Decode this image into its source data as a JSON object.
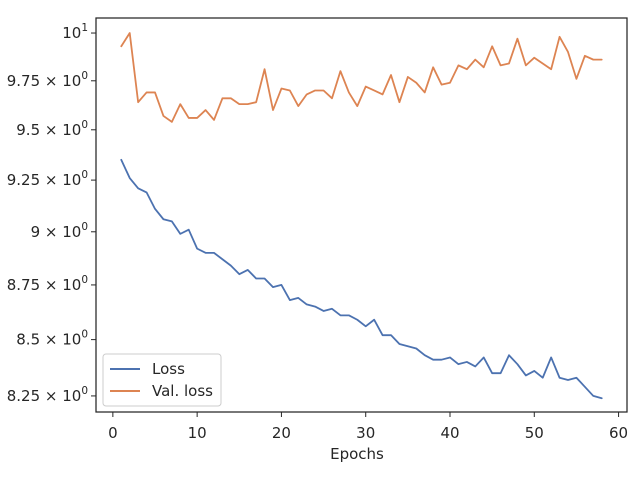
{
  "chart_data": {
    "type": "line",
    "title": "",
    "xlabel": "Epochs",
    "ylabel": "",
    "yscale": "log",
    "xlim": [
      -2,
      61
    ],
    "ylim": [
      8.18,
      10.08
    ],
    "grid": false,
    "legend_position": "bottom-left",
    "x_ticks": [
      0,
      10,
      20,
      30,
      40,
      50,
      60
    ],
    "x_tick_labels": [
      "0",
      "10",
      "20",
      "30",
      "40",
      "50",
      "60"
    ],
    "y_ticks": [
      8.25,
      8.5,
      8.75,
      9.0,
      9.25,
      9.5,
      9.75,
      10.0
    ],
    "y_tick_labels": [
      {
        "mant": "8.25 × 10",
        "exp": "0"
      },
      {
        "mant": "8.5 × 10",
        "exp": "0"
      },
      {
        "mant": "8.75 × 10",
        "exp": "0"
      },
      {
        "mant": "9 × 10",
        "exp": "0"
      },
      {
        "mant": "9.25 × 10",
        "exp": "0"
      },
      {
        "mant": "9.5 × 10",
        "exp": "0"
      },
      {
        "mant": "9.75 × 10",
        "exp": "0"
      },
      {
        "mant": "10",
        "exp": "1"
      }
    ],
    "x": [
      1,
      2,
      3,
      4,
      5,
      6,
      7,
      8,
      9,
      10,
      11,
      12,
      13,
      14,
      15,
      16,
      17,
      18,
      19,
      20,
      21,
      22,
      23,
      24,
      25,
      26,
      27,
      28,
      29,
      30,
      31,
      32,
      33,
      34,
      35,
      36,
      37,
      38,
      39,
      40,
      41,
      42,
      43,
      44,
      45,
      46,
      47,
      48,
      49,
      50,
      51,
      52,
      53,
      54,
      55,
      56,
      57,
      58
    ],
    "series": [
      {
        "name": "Loss",
        "color": "#4c72b0",
        "values": [
          9.35,
          9.26,
          9.21,
          9.19,
          9.11,
          9.06,
          9.05,
          8.99,
          9.01,
          8.92,
          8.9,
          8.9,
          8.87,
          8.84,
          8.8,
          8.82,
          8.78,
          8.78,
          8.74,
          8.75,
          8.68,
          8.69,
          8.66,
          8.65,
          8.63,
          8.64,
          8.61,
          8.61,
          8.59,
          8.56,
          8.59,
          8.52,
          8.52,
          8.48,
          8.47,
          8.46,
          8.43,
          8.41,
          8.41,
          8.42,
          8.39,
          8.4,
          8.38,
          8.42,
          8.35,
          8.35,
          8.43,
          8.39,
          8.34,
          8.36,
          8.33,
          8.42,
          8.33,
          8.32,
          8.33,
          8.29,
          8.25,
          8.24
        ]
      },
      {
        "name": "Val. loss",
        "color": "#dd8452",
        "values": [
          9.93,
          10.0,
          9.64,
          9.69,
          9.69,
          9.57,
          9.54,
          9.63,
          9.56,
          9.56,
          9.6,
          9.55,
          9.66,
          9.66,
          9.63,
          9.63,
          9.64,
          9.81,
          9.6,
          9.71,
          9.7,
          9.62,
          9.68,
          9.7,
          9.7,
          9.66,
          9.8,
          9.69,
          9.62,
          9.72,
          9.7,
          9.68,
          9.78,
          9.64,
          9.77,
          9.74,
          9.69,
          9.82,
          9.73,
          9.74,
          9.83,
          9.81,
          9.86,
          9.82,
          9.93,
          9.83,
          9.84,
          9.97,
          9.83,
          9.87,
          9.84,
          9.81,
          9.98,
          9.9,
          9.76,
          9.88,
          9.86,
          9.86
        ]
      }
    ]
  }
}
